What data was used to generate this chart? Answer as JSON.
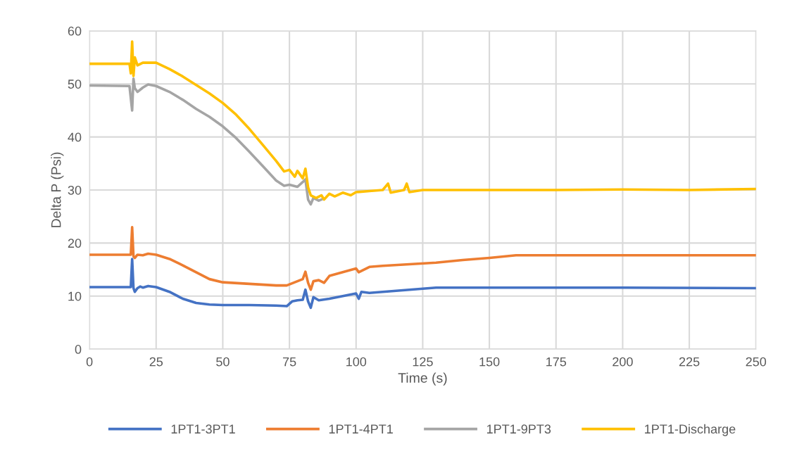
{
  "chart_data": {
    "type": "line",
    "xlabel": "Time (s)",
    "ylabel": "Delta P (Psi)",
    "xlim": [
      0,
      250
    ],
    "xticks": [
      0,
      25,
      50,
      75,
      100,
      125,
      150,
      175,
      200,
      225,
      250
    ],
    "ylim": [
      0,
      60
    ],
    "yticks": [
      0,
      10,
      20,
      30,
      40,
      50,
      60
    ],
    "grid": true,
    "legend": "bottom",
    "marker": "none",
    "line_style": "solid",
    "series": [
      {
        "name": "1PT1-3PT1",
        "color": "#4472c4",
        "x": [
          0,
          15.5,
          16,
          16.5,
          17,
          18,
          19,
          20,
          22,
          25,
          30,
          35,
          40,
          45,
          50,
          60,
          70,
          74,
          76,
          78,
          80,
          81,
          82,
          83,
          84,
          86,
          90,
          95,
          100,
          101,
          102,
          105,
          110,
          120,
          130,
          140,
          175,
          200,
          250
        ],
        "values": [
          11.7,
          11.7,
          17,
          11.5,
          10.8,
          11.5,
          11.8,
          11.6,
          11.9,
          11.7,
          10.8,
          9.5,
          8.7,
          8.4,
          8.3,
          8.3,
          8.2,
          8.1,
          9.0,
          9.2,
          9.3,
          11.2,
          9.0,
          7.8,
          9.8,
          9.2,
          9.5,
          10.0,
          10.5,
          9.5,
          10.8,
          10.6,
          10.8,
          11.2,
          11.6,
          11.6,
          11.6,
          11.6,
          11.5
        ]
      },
      {
        "name": "1PT1-4PT1",
        "color": "#ed7d31",
        "x": [
          0,
          15.5,
          16,
          16.5,
          17,
          18,
          20,
          22,
          25,
          30,
          35,
          40,
          45,
          50,
          60,
          70,
          74,
          76,
          78,
          80,
          81,
          82,
          83,
          84,
          86,
          88,
          90,
          95,
          100,
          101,
          105,
          110,
          120,
          130,
          140,
          150,
          160,
          175,
          200,
          250
        ],
        "values": [
          17.8,
          17.8,
          23,
          17.5,
          17.2,
          17.8,
          17.7,
          18.0,
          17.8,
          17.0,
          15.8,
          14.5,
          13.2,
          12.6,
          12.3,
          12.0,
          12.0,
          12.4,
          12.8,
          13.2,
          14.6,
          12.5,
          11.2,
          12.8,
          13.0,
          12.5,
          13.8,
          14.5,
          15.2,
          14.5,
          15.5,
          15.7,
          16.0,
          16.3,
          16.8,
          17.2,
          17.7,
          17.7,
          17.7,
          17.7
        ]
      },
      {
        "name": "1PT1-9PT3",
        "color": "#a5a5a5",
        "x": [
          0,
          15,
          16,
          16.5,
          17,
          18,
          20,
          22,
          25,
          30,
          35,
          40,
          45,
          50,
          55,
          60,
          65,
          70,
          73,
          75,
          78,
          80,
          81,
          82,
          83,
          84,
          86,
          87
        ],
        "values": [
          49.7,
          49.6,
          45,
          51,
          49.2,
          48.5,
          49.3,
          49.9,
          49.6,
          48.5,
          47,
          45.3,
          43.8,
          42,
          39.8,
          37.2,
          34.5,
          31.8,
          30.8,
          31,
          30.6,
          31.5,
          32,
          28.2,
          27.3,
          28.5,
          28,
          28.2
        ]
      },
      {
        "name": "1PT1-Discharge",
        "color": "#ffc000",
        "x": [
          0,
          15,
          15.5,
          16,
          16.5,
          17,
          18,
          20,
          25,
          30,
          35,
          40,
          45,
          50,
          55,
          60,
          65,
          70,
          73,
          75,
          77,
          78,
          80,
          81,
          82,
          83,
          85,
          87,
          88,
          90,
          92,
          95,
          98,
          100,
          105,
          110,
          112,
          113,
          118,
          119,
          120,
          125,
          150,
          175,
          200,
          225,
          250
        ],
        "values": [
          53.8,
          53.8,
          52,
          58,
          51.5,
          55,
          53.5,
          54,
          54,
          52.8,
          51.4,
          49.8,
          48.2,
          46.4,
          44.2,
          41.5,
          38.5,
          35.5,
          33.5,
          33.8,
          32.5,
          33.6,
          32.2,
          34,
          30.5,
          29,
          28.5,
          29,
          28.2,
          29.3,
          28.8,
          29.5,
          29,
          29.6,
          29.8,
          30,
          31.2,
          29.5,
          30,
          31.2,
          29.6,
          30,
          30,
          30,
          30.1,
          30,
          30.2
        ]
      }
    ]
  }
}
